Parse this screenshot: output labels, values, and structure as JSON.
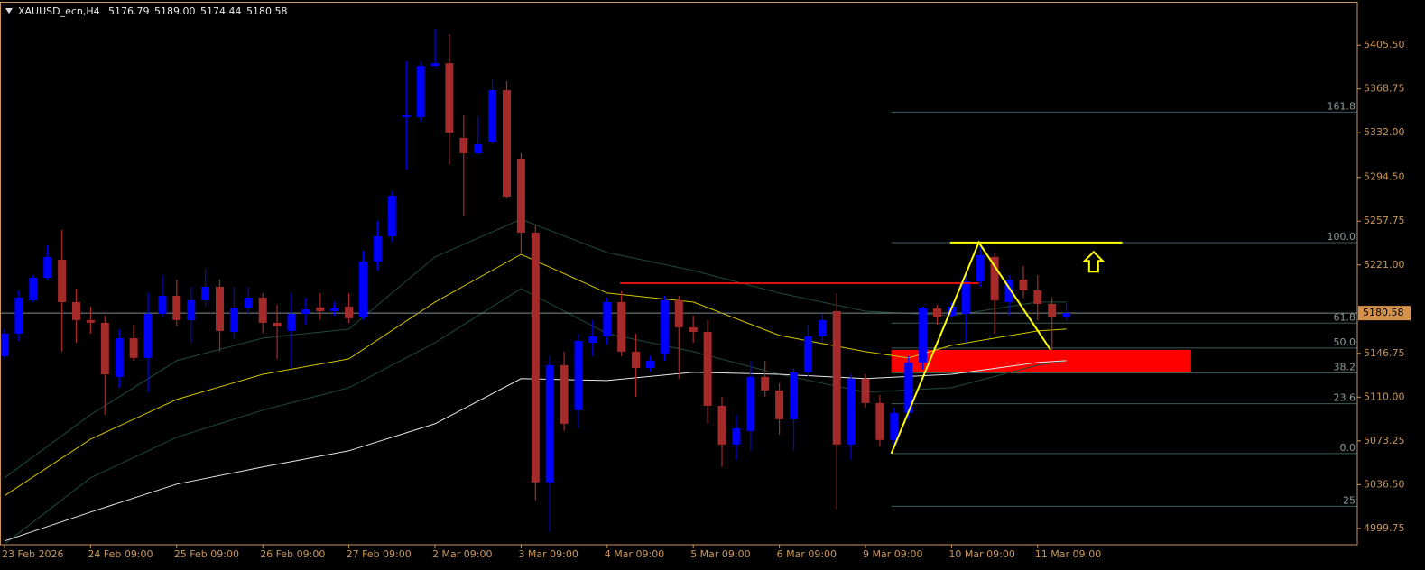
{
  "chart_data": {
    "type": "candlestick",
    "header": {
      "symbol": "XAUUSD_ecn,H4",
      "ohlc": [
        "5176.79",
        "5189.00",
        "5174.44",
        "5180.58"
      ]
    },
    "categories": [
      "23 Feb 2026",
      null,
      null,
      null,
      null,
      null,
      "24 Feb 09:00",
      null,
      null,
      null,
      null,
      null,
      "25 Feb 09:00",
      null,
      null,
      null,
      null,
      null,
      "26 Feb 09:00",
      null,
      null,
      null,
      null,
      null,
      "27 Feb 09:00",
      null,
      null,
      null,
      null,
      null,
      "2 Mar 09:00",
      null,
      null,
      null,
      null,
      null,
      "3 Mar 09:00",
      null,
      null,
      null,
      null,
      null,
      "4 Mar 09:00",
      null,
      null,
      null,
      null,
      null,
      "5 Mar 09:00",
      null,
      null,
      null,
      null,
      null,
      "6 Mar 09:00",
      null,
      null,
      null,
      null,
      null,
      "9 Mar 09:00",
      null,
      null,
      null,
      null,
      null,
      "10 Mar 09:00",
      null,
      null,
      null,
      null,
      null,
      "11 Mar 09:00",
      null,
      null
    ],
    "open": [
      5144.4,
      5163.3,
      5191.3,
      5210.2,
      5225.4,
      5189.8,
      5174.7,
      5172.4,
      5127.0,
      5159.5,
      5142.9,
      5180.0,
      5195.1,
      5174.7,
      5191.3,
      5202.7,
      5164.8,
      5184.5,
      5193.6,
      5172.4,
      5165.6,
      5180.0,
      5185.3,
      5182.2,
      5186.0,
      5176.9,
      5223.9,
      5245.1,
      5345.0,
      5345.0,
      5388.1,
      5390.4,
      5327.6,
      5314.7,
      5324.6,
      5367.7,
      5310.2,
      5248.1,
      5038.4,
      5136.8,
      5099.0,
      5155.7,
      5161.0,
      5189.8,
      5148.2,
      5134.5,
      5146.7,
      5191.3,
      5168.6,
      5164.8,
      5102.7,
      5070.2,
      5081.6,
      5127.0,
      5115.6,
      5091.4,
      5130.8,
      5161.0,
      5182.2,
      5070.2,
      5125.5,
      5105.0,
      5074.0,
      5096.7,
      5139.1,
      5184.5,
      5178.4,
      5180.0,
      5207.2,
      5227.7,
      5189.8,
      5208.7,
      5199.6,
      5188.3,
      5176.79
    ],
    "high": [
      5167.1,
      5199.6,
      5212.5,
      5237.5,
      5250.4,
      5201.2,
      5186.0,
      5178.4,
      5167.1,
      5170.9,
      5197.4,
      5212.5,
      5208.7,
      5202.7,
      5217.8,
      5208.7,
      5202.7,
      5202.7,
      5197.4,
      5187.5,
      5197.4,
      5193.6,
      5197.4,
      5189.8,
      5197.4,
      5233.0,
      5257.9,
      5282.9,
      5391.9,
      5391.9,
      5419.2,
      5414.6,
      5346.5,
      5345.0,
      5376.8,
      5375.3,
      5314.7,
      5254.1,
      5144.4,
      5148.2,
      5163.3,
      5174.7,
      5193.6,
      5198.9,
      5163.3,
      5144.4,
      5195.1,
      5195.1,
      5178.4,
      5174.7,
      5110.3,
      5095.2,
      5140.6,
      5140.6,
      5121.7,
      5134.5,
      5170.9,
      5180.0,
      5197.4,
      5129.2,
      5129.2,
      5111.8,
      5101.2,
      5144.4,
      5186.0,
      5187.5,
      5189.8,
      5212.5,
      5239.0,
      5231.4,
      5212.5,
      5220.1,
      5212.5,
      5193.6,
      5189
    ],
    "low": [
      5142.1,
      5157.3,
      5189.8,
      5208.7,
      5148.2,
      5155.7,
      5163.3,
      5095.2,
      5117.9,
      5140.6,
      5114.1,
      5176.9,
      5169.4,
      5155.7,
      5186.0,
      5148.2,
      5159.5,
      5180.0,
      5163.3,
      5142.1,
      5134.5,
      5170.9,
      5174.7,
      5178.4,
      5172.4,
      5174.7,
      5216.3,
      5240.5,
      5301.1,
      5341.2,
      5386.6,
      5305.6,
      5261.7,
      5313.2,
      5322.3,
      5276.9,
      5229.9,
      5023.3,
      4996.8,
      5081.6,
      5083.8,
      5144.4,
      5154.2,
      5144.4,
      5110.3,
      5131.5,
      5140.6,
      5125.5,
      5155.7,
      5087.6,
      5051.3,
      5057.3,
      5064.9,
      5110.3,
      5078.5,
      5064.9,
      5127.0,
      5155.7,
      5015.7,
      5057.3,
      5101.2,
      5068.7,
      5070.2,
      5091.4,
      5133.0,
      5170.9,
      5176.9,
      5155.7,
      5202.7,
      5163.3,
      5178.4,
      5193.6,
      5174.7,
      5148.2,
      5174.44
    ],
    "close": [
      5163.3,
      5193.6,
      5210.2,
      5227.7,
      5189.8,
      5174.7,
      5172.4,
      5129.2,
      5159.5,
      5142.9,
      5180.0,
      5195.1,
      5174.7,
      5191.3,
      5202.7,
      5165.6,
      5184.5,
      5193.6,
      5172.4,
      5169.4,
      5180.0,
      5183.7,
      5182.2,
      5184.5,
      5176.2,
      5223.9,
      5245.1,
      5279.1,
      5346.5,
      5388.1,
      5390.4,
      5332.1,
      5314.7,
      5322.3,
      5367.7,
      5278.4,
      5248.1,
      5038.4,
      5136.8,
      5087.6,
      5157.3,
      5161.0,
      5189.8,
      5148.2,
      5134.5,
      5140.6,
      5191.3,
      5168.6,
      5164.8,
      5102.7,
      5070.2,
      5083.8,
      5127.0,
      5115.6,
      5091.4,
      5130.8,
      5161.0,
      5174.7,
      5070.2,
      5125.5,
      5105.0,
      5074.0,
      5096.7,
      5139.1,
      5184.5,
      5176.9,
      5186.0,
      5207.2,
      5229.2,
      5191.3,
      5208.7,
      5199.6,
      5188.3,
      5176.9,
      5180.58
    ],
    "up_color": "#0000ff",
    "down_color": "#a52a2a",
    "ylim": [
      4986,
      5442
    ],
    "yticks": [
      {
        "value": 5405.5,
        "label": "5405.50"
      },
      {
        "value": 5368.75,
        "label": "5368.75"
      },
      {
        "value": 5332,
        "label": "5332.00"
      },
      {
        "value": 5294.5,
        "label": "5294.50"
      },
      {
        "value": 5257.75,
        "label": "5257.75"
      },
      {
        "value": 5221,
        "label": "5221.00"
      },
      {
        "value": 5146.75,
        "label": "5146.75"
      },
      {
        "value": 5110,
        "label": "5110.00"
      },
      {
        "value": 5073.25,
        "label": "5073.25"
      },
      {
        "value": 5036.5,
        "label": "5036.50"
      },
      {
        "value": 4999.75,
        "label": "4999.75"
      }
    ],
    "ma_lines": [
      {
        "color": "#1f4a3a",
        "x": [
          0,
          6,
          12,
          18,
          24,
          30,
          36,
          42,
          48,
          54,
          60,
          66,
          72,
          74
        ],
        "values": [
          5042.2,
          5095.2,
          5140.6,
          5159.5,
          5167.1,
          5227.7,
          5259.4,
          5231.4,
          5216.3,
          5197.4,
          5182.2,
          5178.4,
          5189.8,
          5189.8
        ]
      },
      {
        "color": "#1f4a3a",
        "x": [
          0,
          6,
          12,
          18,
          24,
          30,
          36,
          42,
          48,
          54,
          60,
          66,
          72,
          74
        ],
        "values": [
          4986.6,
          5042.2,
          5076.3,
          5099.0,
          5117.9,
          5155.7,
          5201.2,
          5163.3,
          5148.2,
          5129.2,
          5114.1,
          5117.9,
          5136.8,
          5140.6
        ]
      },
      {
        "color": "#d4c400",
        "x": [
          0,
          6,
          12,
          18,
          24,
          30,
          36,
          42,
          48,
          54,
          60,
          63,
          66,
          72,
          74
        ],
        "values": [
          5027.1,
          5074.7,
          5108.0,
          5129.2,
          5142.1,
          5189.8,
          5229.9,
          5197.4,
          5189.8,
          5161.8,
          5148.2,
          5142.9,
          5153.5,
          5165.6,
          5167.1
        ]
      },
      {
        "color": "#e8e8e8",
        "x": [
          0,
          6,
          12,
          18,
          24,
          30,
          36,
          42,
          48,
          54,
          60,
          66,
          72,
          74
        ],
        "values": [
          4989.2,
          5013.4,
          5036.9,
          5051.3,
          5064.9,
          5087.6,
          5125.5,
          5123.9,
          5130.8,
          5129.2,
          5125.5,
          5129.2,
          5139.1,
          5140.6
        ]
      }
    ],
    "fib": {
      "range": [
        5062.6,
        5239.8
      ],
      "from": 61.8,
      "color": "#3d5c5c",
      "levels": [
        161.8,
        {
          "value": 100,
          "label": "100.0"
        },
        61.8,
        {
          "value": 50,
          "label": "50.0"
        },
        38.2,
        23.6,
        {
          "value": 0,
          "label": "0.0"
        },
        -25
      ]
    },
    "zone": {
      "color": "#ff0000",
      "x": [
        61.8,
        82.7
      ],
      "values": [
        5149.7,
        5130.8
      ]
    },
    "trend_line": {
      "color": "#e01010",
      "x": [
        42.9,
        67.9
      ],
      "values": [
        5205.7,
        5205.7
      ]
    },
    "target_line": {
      "color": "#ffff00",
      "x": [
        65.9,
        77.9
      ],
      "values": [
        5239.8,
        5239.8
      ]
    },
    "zigzag": {
      "color": "#ffff00",
      "x": [
        61.8,
        67.9,
        72.9
      ],
      "values": [
        5062.6,
        5239.8,
        5149.7
      ]
    },
    "arrow": {
      "color": "#ffff00",
      "x": 75.9,
      "value": 5232
    }
  }
}
